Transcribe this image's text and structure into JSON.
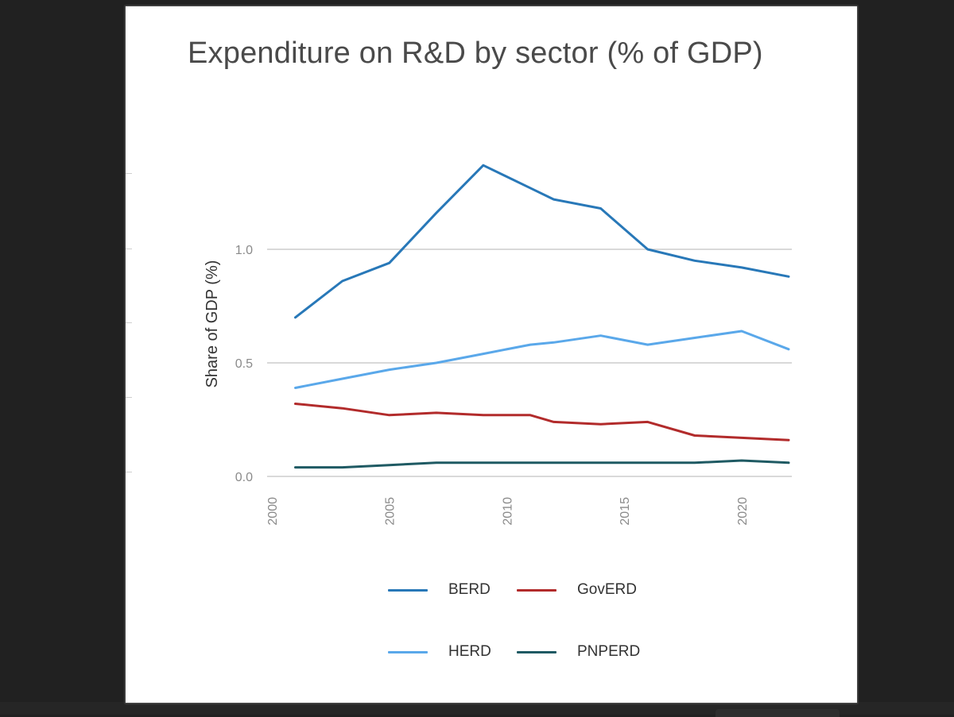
{
  "chart_data": {
    "type": "line",
    "title": "Expenditure on R&D by sector (% of GDP)",
    "xlabel": "",
    "ylabel": "Share of GDP (%)",
    "x": [
      2001,
      2003,
      2005,
      2007,
      2009,
      2011,
      2012,
      2014,
      2016,
      2018,
      2020,
      2022
    ],
    "xlim": [
      2000,
      2022
    ],
    "ylim": [
      0.0,
      1.42
    ],
    "x_ticks": [
      "2000",
      "2005",
      "2010",
      "2015",
      "2020"
    ],
    "x_tick_values": [
      2000,
      2005,
      2010,
      2015,
      2020
    ],
    "y_ticks": [
      "0.0",
      "0.5",
      "1.0"
    ],
    "y_tick_values": [
      0.0,
      0.5,
      1.0
    ],
    "grid": "horizontal",
    "legend_position": "bottom",
    "series": [
      {
        "name": "BERD",
        "color": "#2878b8",
        "values": [
          0.7,
          0.86,
          0.94,
          1.16,
          1.37,
          1.27,
          1.22,
          1.18,
          1.0,
          0.95,
          0.92,
          0.88
        ]
      },
      {
        "name": "GovERD",
        "color": "#b22b2b",
        "values": [
          0.32,
          0.3,
          0.27,
          0.28,
          0.27,
          0.27,
          0.24,
          0.23,
          0.24,
          0.18,
          0.17,
          0.16
        ]
      },
      {
        "name": "HERD",
        "color": "#5aa8ea",
        "values": [
          0.39,
          0.43,
          0.47,
          0.5,
          0.54,
          0.58,
          0.59,
          0.62,
          0.58,
          0.61,
          0.64,
          0.56
        ]
      },
      {
        "name": "PNPERD",
        "color": "#1f5a63",
        "values": [
          0.04,
          0.04,
          0.05,
          0.06,
          0.06,
          0.06,
          0.06,
          0.06,
          0.06,
          0.06,
          0.07,
          0.06
        ]
      }
    ]
  }
}
